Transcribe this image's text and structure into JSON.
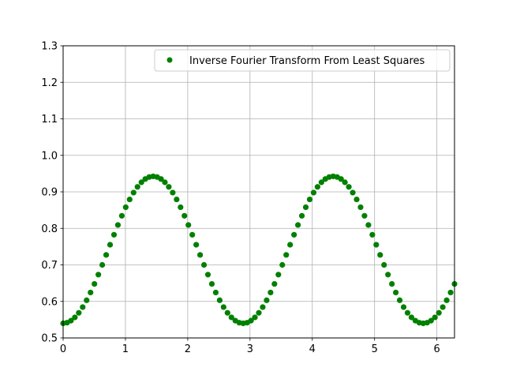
{
  "chart_data": {
    "type": "scatter",
    "title": "",
    "xlabel": "",
    "ylabel": "",
    "xlim": [
      0,
      6.283
    ],
    "ylim": [
      0.5,
      1.3
    ],
    "x_ticks": [
      0,
      1,
      2,
      3,
      4,
      5,
      6
    ],
    "x_tick_labels": [
      "0",
      "1",
      "2",
      "3",
      "4",
      "5",
      "6"
    ],
    "y_ticks": [
      0.5,
      0.6,
      0.7,
      0.8,
      0.9,
      1.0,
      1.1,
      1.2,
      1.3
    ],
    "y_tick_labels": [
      "0.5",
      "0.6",
      "0.7",
      "0.8",
      "0.9",
      "1.0",
      "1.1",
      "1.2",
      "1.3"
    ],
    "grid": true,
    "legend_position": "top-right",
    "series": [
      {
        "name": "Inverse Fourier Transform From Least Squares",
        "color": "#008000",
        "marker": "circle",
        "x": [
          0,
          0.0628,
          0.1257,
          0.1885,
          0.2513,
          0.3142,
          0.377,
          0.4398,
          0.5027,
          0.5655,
          0.6283,
          0.6912,
          0.754,
          0.8168,
          0.8796,
          0.9425,
          1.0053,
          1.0681,
          1.131,
          1.1938,
          1.2566,
          1.3195,
          1.3823,
          1.4451,
          1.508,
          1.5708,
          1.6336,
          1.6965,
          1.7593,
          1.8221,
          1.885,
          1.9478,
          2.0106,
          2.0735,
          2.1363,
          2.1991,
          2.2619,
          2.3248,
          2.3876,
          2.4504,
          2.5133,
          2.5761,
          2.6389,
          2.7018,
          2.7646,
          2.8274,
          2.8903,
          2.9531,
          3.0159,
          3.0788,
          3.1416,
          3.2044,
          3.2673,
          3.3301,
          3.3929,
          3.4558,
          3.5186,
          3.5814,
          3.6442,
          3.7071,
          3.7699,
          3.8327,
          3.8956,
          3.9584,
          4.0212,
          4.0841,
          4.1469,
          4.2097,
          4.2726,
          4.3354,
          4.3982,
          4.4611,
          4.5239,
          4.5867,
          4.6496,
          4.7124,
          4.7752,
          4.8381,
          4.9009,
          4.9637,
          5.0265,
          5.0894,
          5.1522,
          5.215,
          5.2779,
          5.3407,
          5.4035,
          5.4664,
          5.5292,
          5.592,
          5.6549,
          5.7177,
          5.7805,
          5.8434,
          5.9062,
          5.969,
          6.0319,
          6.0947,
          6.1575,
          6.2204,
          6.2832
        ],
        "y": [
          0.54,
          0.5418,
          0.5473,
          0.5563,
          0.5688,
          0.5845,
          0.6032,
          0.6245,
          0.648,
          0.6734,
          0.7,
          0.7274,
          0.7552,
          0.7826,
          0.8093,
          0.8345,
          0.858,
          0.8793,
          0.898,
          0.9137,
          0.9262,
          0.9352,
          0.9407,
          0.9425,
          0.9407,
          0.9352,
          0.9262,
          0.9137,
          0.898,
          0.8793,
          0.858,
          0.8345,
          0.8093,
          0.7826,
          0.7552,
          0.7274,
          0.7,
          0.6734,
          0.648,
          0.6245,
          0.6032,
          0.5845,
          0.5688,
          0.5563,
          0.5473,
          0.5418,
          0.54,
          0.5418,
          0.5473,
          0.5563,
          0.5688,
          0.5845,
          0.6032,
          0.6245,
          0.648,
          0.6734,
          0.7,
          0.7274,
          0.7552,
          0.7826,
          0.8093,
          0.8345,
          0.858,
          0.8793,
          0.898,
          0.9137,
          0.9262,
          0.9352,
          0.9407,
          0.9425,
          0.9407,
          0.9352,
          0.9262,
          0.9137,
          0.898,
          0.8793,
          0.858,
          0.8345,
          0.8093,
          0.7826,
          0.7552,
          0.7274,
          0.7,
          0.6734,
          0.648,
          0.6245,
          0.6032,
          0.5845,
          0.5688,
          0.5563,
          0.5473,
          0.5418,
          0.54,
          0.5418,
          0.5473,
          0.5563,
          0.5688,
          0.5845,
          0.6032,
          0.6245,
          0.648
        ]
      }
    ]
  }
}
